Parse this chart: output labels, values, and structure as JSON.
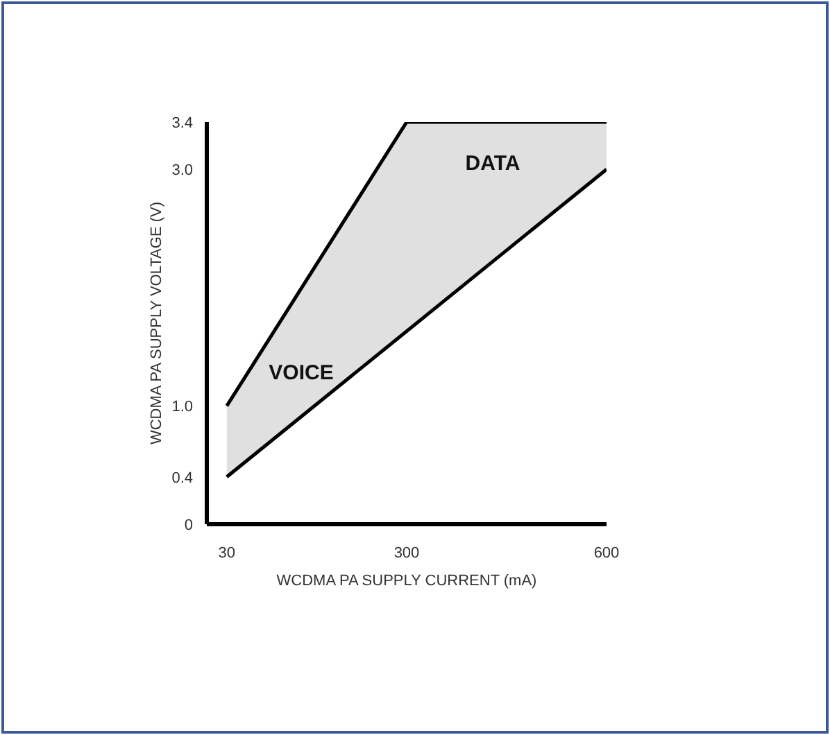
{
  "chart_data": {
    "type": "line",
    "xlabel": "WCDMA PA SUPPLY CURRENT (mA)",
    "ylabel": "WCDMA PA SUPPLY VOLTAGE (V)",
    "series": [
      {
        "color": "#000000",
        "x": [
          30,
          300,
          600
        ],
        "values": [
          1.0,
          3.4,
          3.4
        ],
        "lower": [
          0.4,
          1.63,
          3.0
        ],
        "upper": [
          1.0,
          3.4,
          3.4
        ]
      },
      {
        "color": "#000000",
        "x": [
          30,
          600
        ],
        "values": [
          0.4,
          3.0
        ]
      }
    ],
    "xlim": [
      0,
      600
    ],
    "xticks": [
      30,
      300,
      600
    ],
    "ylim": [
      0,
      3.4
    ],
    "yticks": [
      0,
      0.4,
      {
        "value": 1.0,
        "label": "1.0"
      },
      {
        "value": 3.0,
        "label": "3.0"
      },
      3.4
    ],
    "annotations": [
      "DATA",
      "VOICE"
    ]
  }
}
